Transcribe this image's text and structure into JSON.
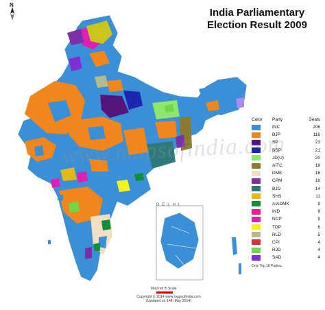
{
  "title_line1": "India Parliamentary",
  "title_line2": "Election Result 2009",
  "compass_label": "N",
  "watermark": "www.mapsofindia.com",
  "legend": {
    "header_color": "Color",
    "header_party": "Party",
    "header_seats": "Seats",
    "items": [
      {
        "party": "INC",
        "seats": "206",
        "color": "#3a8fd6"
      },
      {
        "party": "BJP",
        "seats": "116",
        "color": "#f0861c"
      },
      {
        "party": "SP",
        "seats": "23",
        "color": "#54167a"
      },
      {
        "party": "BSP",
        "seats": "21",
        "color": "#1b27b0"
      },
      {
        "party": "JD(U)",
        "seats": "20",
        "color": "#8ee66a"
      },
      {
        "party": "AITC",
        "seats": "19",
        "color": "#8a7b2e"
      },
      {
        "party": "DMK",
        "seats": "18",
        "color": "#f2dfc2"
      },
      {
        "party": "CPM",
        "seats": "16",
        "color": "#7d2fa8"
      },
      {
        "party": "BJD",
        "seats": "14",
        "color": "#2e7a7a"
      },
      {
        "party": "SHS",
        "seats": "11",
        "color": "#e3b81a"
      },
      {
        "party": "AIADMK",
        "seats": "9",
        "color": "#0f8f3c"
      },
      {
        "party": "IND",
        "seats": "9",
        "color": "#ed1c91"
      },
      {
        "party": "NCP",
        "seats": "9",
        "color": "#e01fb4"
      },
      {
        "party": "TDP",
        "seats": "6",
        "color": "#f6f01c"
      },
      {
        "party": "RLD",
        "seats": "5",
        "color": "#b5b98f"
      },
      {
        "party": "CPI",
        "seats": "4",
        "color": "#e02b3a"
      },
      {
        "party": "RJD",
        "seats": "4",
        "color": "#6fd84a"
      },
      {
        "party": "SAD",
        "seats": "4",
        "color": "#7c2fd6"
      }
    ],
    "note": "Only Top 18 Parties."
  },
  "inset_label": "DELHI",
  "scale_note": "Map not to Scale",
  "copyright_line1": "Copyright © 2014 www.mapsofindia.com",
  "copyright_line2": "(Updated on 14th May 2014)"
}
